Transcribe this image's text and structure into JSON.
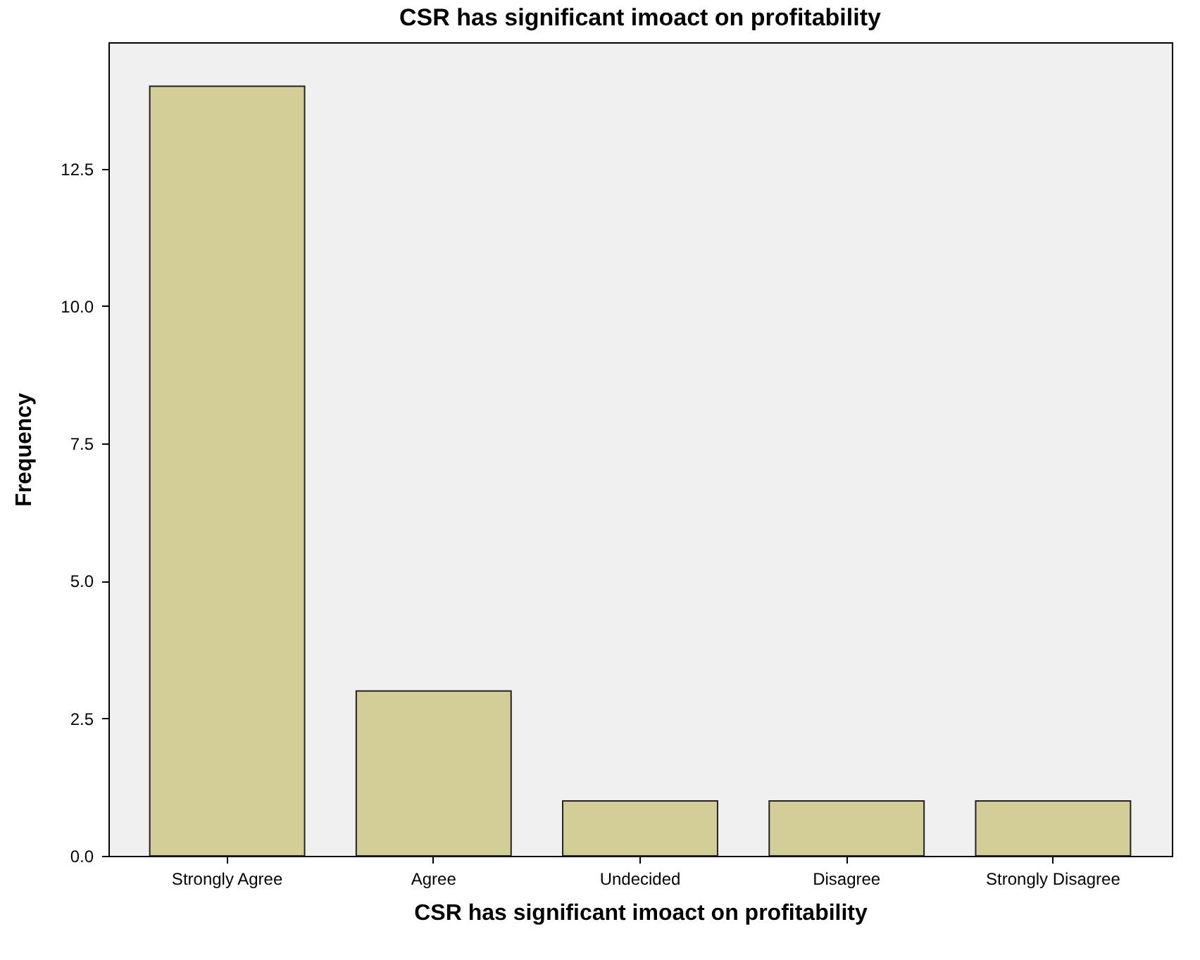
{
  "chart_data": {
    "type": "bar",
    "title": "CSR has significant imoact on profitability",
    "xlabel": "CSR has significant imoact on profitability",
    "ylabel": "Frequency",
    "categories": [
      "Strongly Agree",
      "Agree",
      "Undecided",
      "Disagree",
      "Strongly Disagree"
    ],
    "values": [
      14,
      3,
      1,
      1,
      1
    ],
    "color": "#d3ce97",
    "ylim": [
      0,
      14.8
    ],
    "yticks": [
      {
        "value": 0,
        "label": "0.0"
      },
      2.5,
      {
        "value": 5,
        "label": "5.0"
      },
      7.5,
      {
        "value": 10,
        "label": "10.0"
      },
      12.5
    ],
    "grid": false
  }
}
